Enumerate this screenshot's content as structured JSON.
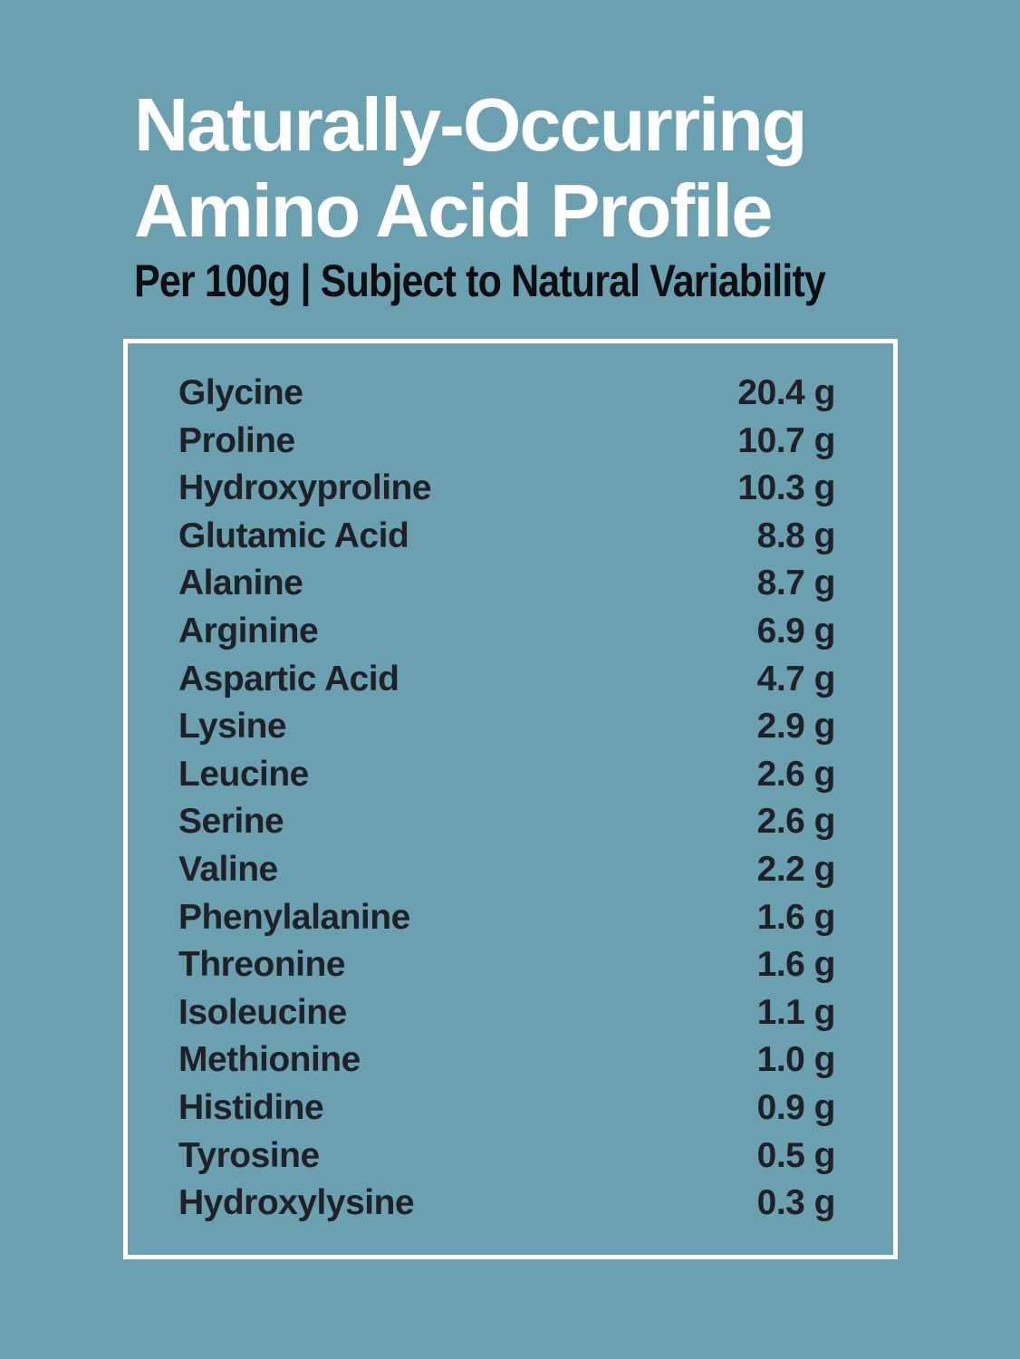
{
  "page": {
    "background_color": "#6BA0B1",
    "title_color": "#FFFFFF",
    "subtitle_color": "#0D0E12",
    "table_text_color": "#1F2126",
    "box_border_color": "#FFFFFF"
  },
  "header": {
    "title_line1": "Naturally-Occurring",
    "title_line2": "Amino Acid Profile",
    "subtitle": "Per 100g | Subject to Natural Variability"
  },
  "table": {
    "unit": "g",
    "rows": [
      {
        "name": "Glycine",
        "value": "20.4"
      },
      {
        "name": "Proline",
        "value": "10.7"
      },
      {
        "name": "Hydroxyproline",
        "value": "10.3"
      },
      {
        "name": "Glutamic Acid",
        "value": "8.8"
      },
      {
        "name": "Alanine",
        "value": "8.7"
      },
      {
        "name": "Arginine",
        "value": "6.9"
      },
      {
        "name": "Aspartic Acid",
        "value": "4.7"
      },
      {
        "name": "Lysine",
        "value": "2.9"
      },
      {
        "name": "Leucine",
        "value": "2.6"
      },
      {
        "name": "Serine",
        "value": "2.6"
      },
      {
        "name": "Valine",
        "value": "2.2"
      },
      {
        "name": "Phenylalanine",
        "value": "1.6"
      },
      {
        "name": "Threonine",
        "value": "1.6"
      },
      {
        "name": "Isoleucine",
        "value": "1.1"
      },
      {
        "name": "Methionine",
        "value": "1.0"
      },
      {
        "name": "Histidine",
        "value": "0.9"
      },
      {
        "name": "Tyrosine",
        "value": "0.5"
      },
      {
        "name": "Hydroxylysine",
        "value": "0.3"
      }
    ]
  }
}
